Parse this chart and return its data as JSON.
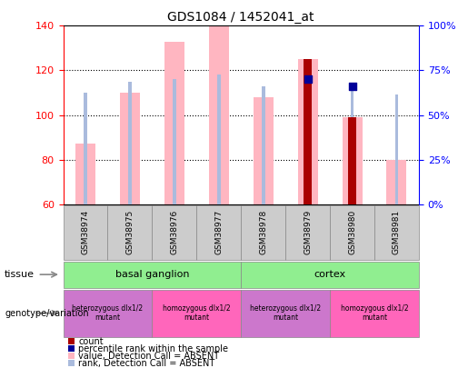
{
  "title": "GDS1084 / 1452041_at",
  "samples": [
    "GSM38974",
    "GSM38975",
    "GSM38976",
    "GSM38977",
    "GSM38978",
    "GSM38979",
    "GSM38980",
    "GSM38981"
  ],
  "ylim_left": [
    60,
    140
  ],
  "yticks_left": [
    60,
    80,
    100,
    120,
    140
  ],
  "ytick_labels_right": [
    "0%",
    "25%",
    "50%",
    "75%",
    "100%"
  ],
  "right_ticks_at": [
    60,
    80,
    100,
    120,
    140
  ],
  "bars_absent_value": [
    87,
    110,
    133,
    140,
    108,
    125,
    99,
    80
  ],
  "bars_absent_rank": [
    110,
    115,
    116,
    118,
    113,
    116,
    112,
    109
  ],
  "count_bars": [
    null,
    null,
    null,
    null,
    null,
    125,
    99,
    null
  ],
  "rank_dots": [
    null,
    null,
    null,
    null,
    null,
    116,
    113,
    null
  ],
  "tissue_groups": [
    {
      "label": "basal ganglion",
      "start": 0,
      "end": 4,
      "color": "#90EE90"
    },
    {
      "label": "cortex",
      "start": 4,
      "end": 8,
      "color": "#90EE90"
    }
  ],
  "genotype_groups": [
    {
      "label": "heterozygous dlx1/2\nmutant",
      "start": 0,
      "end": 2,
      "color": "#CC77CC"
    },
    {
      "label": "homozygous dlx1/2\nmutant",
      "start": 2,
      "end": 4,
      "color": "#FF66BB"
    },
    {
      "label": "heterozygous dlx1/2\nmutant",
      "start": 4,
      "end": 6,
      "color": "#CC77CC"
    },
    {
      "label": "homozygous dlx1/2\nmutant",
      "start": 6,
      "end": 8,
      "color": "#FF66BB"
    }
  ],
  "color_absent_bar": "#FFB6C1",
  "color_absent_rank_bar": "#AABBDD",
  "color_count": "#AA0000",
  "color_rank_dot": "#000099",
  "cell_bg": "#CCCCCC",
  "absent_bar_width": 0.45,
  "rank_bar_width": 0.08,
  "count_bar_width": 0.18,
  "dot_size": 30,
  "legend_items": [
    {
      "color": "#AA0000",
      "label": "count"
    },
    {
      "color": "#000099",
      "label": "percentile rank within the sample"
    },
    {
      "color": "#FFB6C1",
      "label": "value, Detection Call = ABSENT"
    },
    {
      "color": "#AABBDD",
      "label": "rank, Detection Call = ABSENT"
    }
  ]
}
